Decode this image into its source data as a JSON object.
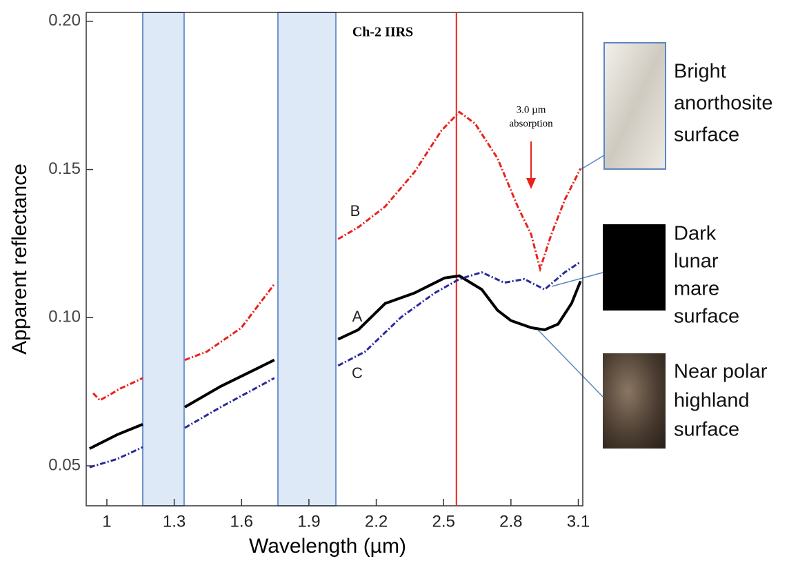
{
  "chart_data": {
    "type": "line",
    "title": "Ch-2 IIRS",
    "x_label": "Wavelength (µm)",
    "y_label": "Apparent reflectance",
    "xlim": [
      0.908,
      3.12
    ],
    "ylim": [
      0.0365,
      0.203
    ],
    "xticks": [
      1,
      1.3,
      1.6,
      1.9,
      2.2,
      2.5,
      2.8,
      3.1
    ],
    "yticks": [
      {
        "value": 0.2,
        "label": "0.20"
      },
      0.15,
      {
        "value": 0.1,
        "label": "0.10"
      },
      0.05
    ],
    "shaded_bands": [
      [
        1.16,
        1.344
      ],
      [
        1.762,
        2.02
      ]
    ],
    "band_color": "#dde9f7",
    "vline": 2.557,
    "vline_color": "#e8231c",
    "series": [
      {
        "name": "B",
        "color": "#e8231c",
        "style": "dash-dot",
        "x": [
          0.939,
          0.969,
          1.061,
          1.16,
          null,
          1.347,
          1.445,
          1.599,
          1.746,
          null,
          2.03,
          2.12,
          2.24,
          2.37,
          2.49,
          2.57,
          2.64,
          2.74,
          2.83,
          2.89,
          2.93,
          2.98,
          3.04,
          3.11
        ],
        "values": [
          0.0745,
          0.0721,
          0.0761,
          0.0796,
          null,
          0.0857,
          0.0885,
          0.0966,
          0.1113,
          null,
          0.1265,
          0.1305,
          0.1375,
          0.1491,
          0.1631,
          0.1694,
          0.1655,
          0.1538,
          0.1375,
          0.1281,
          0.1165,
          0.1281,
          0.1398,
          0.1503
        ]
      },
      {
        "name": "A",
        "color": "#000000",
        "style": "solid",
        "x": [
          0.923,
          1.046,
          1.16,
          null,
          1.347,
          1.507,
          1.746,
          null,
          2.03,
          2.12,
          2.24,
          2.37,
          2.505,
          2.57,
          2.67,
          2.74,
          2.8,
          2.89,
          2.95,
          3.01,
          3.07,
          3.11
        ],
        "values": [
          0.0558,
          0.0605,
          0.064,
          null,
          0.0698,
          0.0768,
          0.0857,
          null,
          0.0927,
          0.0959,
          0.1048,
          0.1083,
          0.1134,
          0.1141,
          0.1095,
          0.1025,
          0.099,
          0.0966,
          0.0959,
          0.0978,
          0.1048,
          0.1123
        ]
      },
      {
        "name": "C",
        "color": "#2a2a9a",
        "style": "dash-dot",
        "x": [
          0.923,
          1.046,
          1.16,
          null,
          1.347,
          1.507,
          1.746,
          null,
          2.03,
          2.15,
          2.31,
          2.46,
          2.57,
          2.67,
          2.77,
          2.86,
          2.95,
          3.04,
          3.11
        ],
        "values": [
          0.0495,
          0.0523,
          0.0563,
          null,
          0.0628,
          0.0698,
          0.0796,
          null,
          0.0838,
          0.0885,
          0.1001,
          0.1083,
          0.113,
          0.1153,
          0.1118,
          0.113,
          0.1095,
          0.1153,
          0.1188
        ]
      }
    ],
    "annotations": [
      "3.0 µm",
      "absorption"
    ],
    "panels": [
      {
        "lines": [
          "Bright",
          "anorthosite",
          "surface"
        ]
      },
      {
        "lines": [
          "Dark",
          "lunar",
          "mare",
          "surface"
        ]
      },
      {
        "lines": [
          "Near polar",
          "highland",
          "surface"
        ]
      }
    ]
  }
}
